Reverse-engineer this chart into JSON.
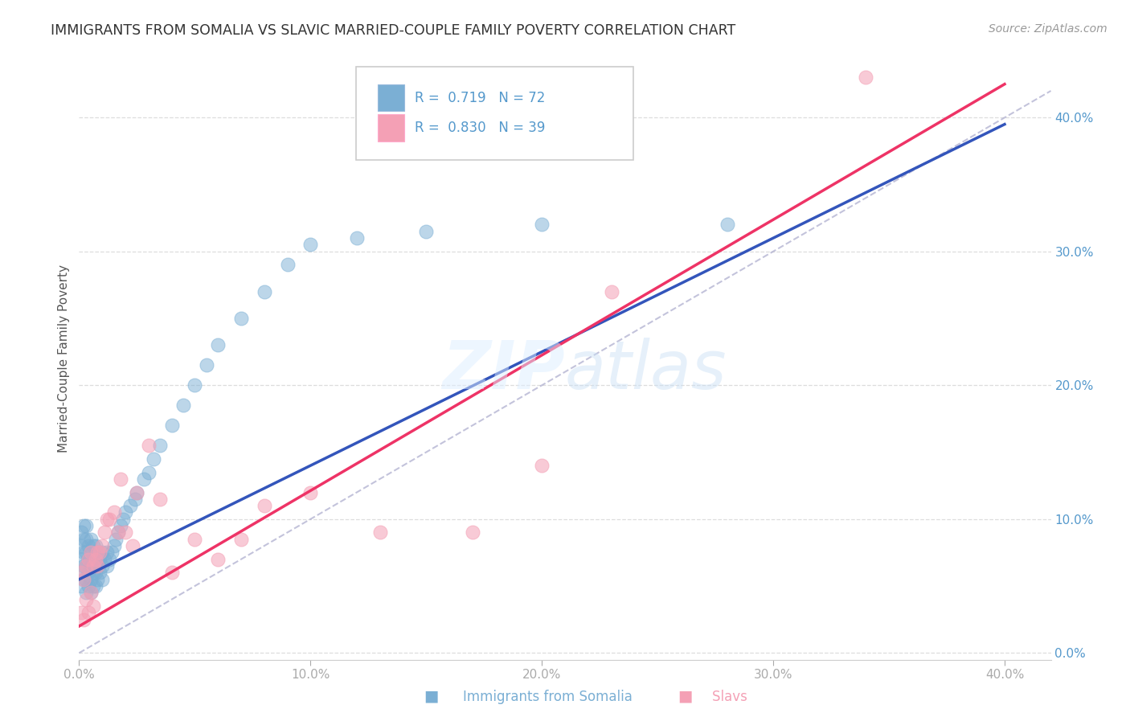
{
  "title": "IMMIGRANTS FROM SOMALIA VS SLAVIC MARRIED-COUPLE FAMILY POVERTY CORRELATION CHART",
  "source": "Source: ZipAtlas.com",
  "ylabel": "Married-Couple Family Poverty",
  "legend1_R": "0.719",
  "legend1_N": "72",
  "legend2_R": "0.830",
  "legend2_N": "39",
  "blue_color": "#7BAFD4",
  "pink_color": "#F4A0B5",
  "line_blue": "#3355BB",
  "line_pink": "#EE3366",
  "line_diag_color": "#AAAACC",
  "watermark_color": "#DDEEFF",
  "axis_tick_color": "#5599CC",
  "grid_color": "#DDDDDD",
  "spine_color": "#CCCCCC",
  "title_color": "#333333",
  "source_color": "#999999",
  "ylabel_color": "#555555",
  "legend_border_color": "#CCCCCC",
  "xlim": [
    0.0,
    0.42
  ],
  "ylim": [
    -0.005,
    0.445
  ],
  "ytick_vals": [
    0.0,
    0.1,
    0.2,
    0.3,
    0.4
  ],
  "xtick_vals": [
    0.0,
    0.1,
    0.2,
    0.3,
    0.4
  ],
  "blue_x": [
    0.001,
    0.001,
    0.001,
    0.001,
    0.001,
    0.002,
    0.002,
    0.002,
    0.002,
    0.002,
    0.003,
    0.003,
    0.003,
    0.003,
    0.003,
    0.003,
    0.004,
    0.004,
    0.004,
    0.004,
    0.005,
    0.005,
    0.005,
    0.005,
    0.005,
    0.006,
    0.006,
    0.006,
    0.006,
    0.007,
    0.007,
    0.007,
    0.007,
    0.008,
    0.008,
    0.008,
    0.009,
    0.009,
    0.01,
    0.01,
    0.01,
    0.011,
    0.012,
    0.012,
    0.013,
    0.014,
    0.015,
    0.016,
    0.017,
    0.018,
    0.019,
    0.02,
    0.022,
    0.024,
    0.025,
    0.028,
    0.03,
    0.032,
    0.035,
    0.04,
    0.045,
    0.05,
    0.055,
    0.06,
    0.07,
    0.08,
    0.09,
    0.1,
    0.12,
    0.15,
    0.2,
    0.28
  ],
  "blue_y": [
    0.06,
    0.07,
    0.08,
    0.05,
    0.09,
    0.055,
    0.065,
    0.075,
    0.085,
    0.095,
    0.045,
    0.055,
    0.065,
    0.075,
    0.085,
    0.095,
    0.05,
    0.06,
    0.07,
    0.08,
    0.045,
    0.055,
    0.065,
    0.075,
    0.085,
    0.05,
    0.06,
    0.07,
    0.08,
    0.05,
    0.06,
    0.07,
    0.08,
    0.055,
    0.065,
    0.075,
    0.06,
    0.07,
    0.055,
    0.065,
    0.075,
    0.07,
    0.065,
    0.075,
    0.07,
    0.075,
    0.08,
    0.085,
    0.09,
    0.095,
    0.1,
    0.105,
    0.11,
    0.115,
    0.12,
    0.13,
    0.135,
    0.145,
    0.155,
    0.17,
    0.185,
    0.2,
    0.215,
    0.23,
    0.25,
    0.27,
    0.29,
    0.305,
    0.31,
    0.315,
    0.32,
    0.32
  ],
  "pink_x": [
    0.001,
    0.001,
    0.002,
    0.002,
    0.003,
    0.003,
    0.004,
    0.004,
    0.005,
    0.005,
    0.006,
    0.006,
    0.007,
    0.008,
    0.008,
    0.009,
    0.01,
    0.011,
    0.012,
    0.013,
    0.015,
    0.017,
    0.018,
    0.02,
    0.023,
    0.025,
    0.03,
    0.035,
    0.04,
    0.05,
    0.06,
    0.07,
    0.08,
    0.1,
    0.13,
    0.17,
    0.2,
    0.23,
    0.34
  ],
  "pink_y": [
    0.03,
    0.06,
    0.025,
    0.055,
    0.04,
    0.065,
    0.03,
    0.07,
    0.045,
    0.075,
    0.035,
    0.065,
    0.07,
    0.065,
    0.075,
    0.075,
    0.08,
    0.09,
    0.1,
    0.1,
    0.105,
    0.09,
    0.13,
    0.09,
    0.08,
    0.12,
    0.155,
    0.115,
    0.06,
    0.085,
    0.07,
    0.085,
    0.11,
    0.12,
    0.09,
    0.09,
    0.14,
    0.27,
    0.43
  ],
  "blue_line_x0": 0.0,
  "blue_line_y0": 0.055,
  "blue_line_x1": 0.4,
  "blue_line_y1": 0.395,
  "pink_line_x0": 0.0,
  "pink_line_y0": 0.02,
  "pink_line_x1": 0.4,
  "pink_line_y1": 0.425
}
